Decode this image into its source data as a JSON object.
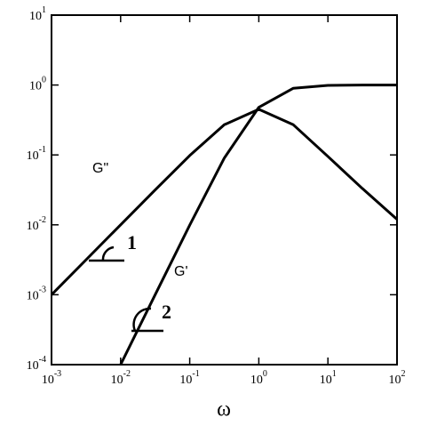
{
  "chart_data": {
    "type": "line",
    "log_x": true,
    "log_y": true,
    "x_label": "ω",
    "x": [
      0.001,
      0.00316,
      0.01,
      0.0316,
      0.1,
      0.316,
      1,
      3.16,
      10,
      31.6,
      100
    ],
    "series": [
      {
        "name": "G\"",
        "color": "#000000",
        "values": [
          0.001,
          0.00316,
          0.01,
          0.0316,
          0.098,
          0.27,
          0.45,
          0.27,
          0.095,
          0.033,
          0.012
        ]
      },
      {
        "name": "G'",
        "color": "#000000",
        "values": [
          null,
          null,
          0.0001,
          0.001,
          0.0099,
          0.09,
          0.48,
          0.9,
          0.99,
          1,
          1
        ]
      }
    ],
    "annotations": [
      "1",
      "2"
    ],
    "xlim": [
      0.001,
      100
    ],
    "ylim": [
      0.0001,
      10
    ],
    "xticks": [
      {
        "value": 0.001,
        "label": "10",
        "exponent": "-3"
      },
      {
        "value": 0.01,
        "label": "10",
        "exponent": "-2"
      },
      {
        "value": 0.1,
        "label": "10",
        "exponent": "-1"
      },
      {
        "value": 1,
        "label": "10",
        "exponent": "0"
      },
      {
        "value": 10,
        "label": "10",
        "exponent": "1"
      },
      {
        "value": 100,
        "label": "10",
        "exponent": "2"
      }
    ],
    "yticks": [
      {
        "value": 0.0001,
        "label": "10",
        "exponent": "-4"
      },
      {
        "value": 0.001,
        "label": "10",
        "exponent": "-3"
      },
      {
        "value": 0.01,
        "label": "10",
        "exponent": "-2"
      },
      {
        "value": 0.1,
        "label": "10",
        "exponent": "-1"
      },
      {
        "value": 1,
        "label": "10",
        "exponent": "0"
      },
      {
        "value": 10,
        "label": "10",
        "exponent": "1"
      }
    ]
  }
}
